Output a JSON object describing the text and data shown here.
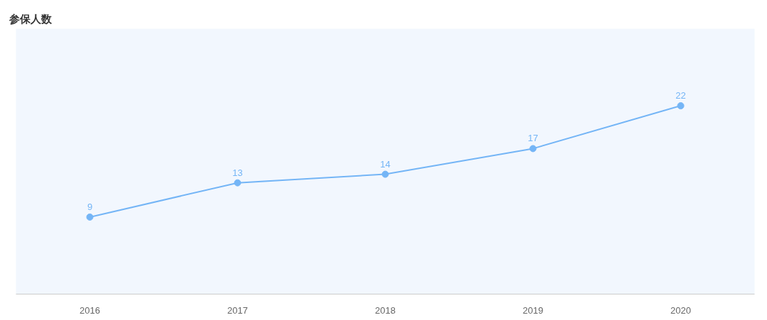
{
  "chart_data": {
    "type": "line",
    "title": "参保人数",
    "categories": [
      "2016",
      "2017",
      "2018",
      "2019",
      "2020"
    ],
    "series": [
      {
        "color": "#74b5f6",
        "values": [
          9,
          13,
          14,
          17,
          22
        ]
      }
    ],
    "ylim": [
      0,
      31
    ],
    "tick_labels": "x",
    "data_labels": true,
    "marker": "circle",
    "grid": false,
    "line_style": "solid"
  }
}
